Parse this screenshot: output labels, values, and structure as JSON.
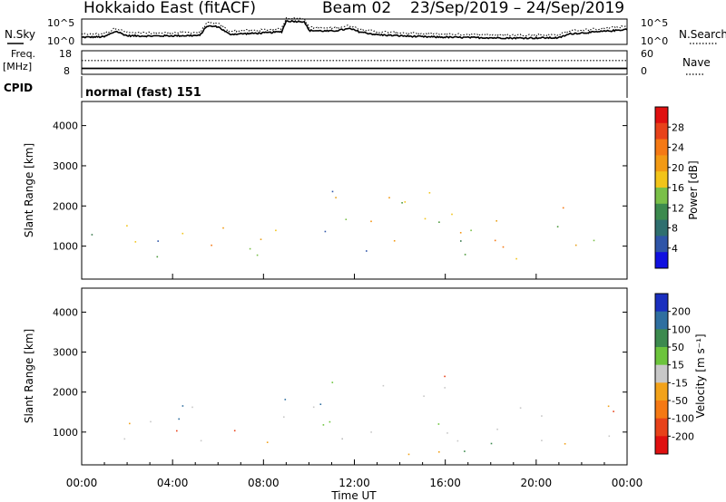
{
  "header": {
    "station": "Hokkaido East (fitACF)",
    "beam": "Beam 02",
    "date_range": "23/Sep/2019 – 24/Sep/2019"
  },
  "noise_panel": {
    "left_label": "N.Sky",
    "right_label": "N.Search",
    "top_tick": "10^5",
    "bottom_tick": "10^0",
    "sky_levels": [
      {
        "t": 0,
        "v": 0.28
      },
      {
        "t": 1,
        "v": 0.3
      },
      {
        "t": 1.5,
        "v": 0.52
      },
      {
        "t": 2,
        "v": 0.34
      },
      {
        "t": 3,
        "v": 0.33
      },
      {
        "t": 4,
        "v": 0.34
      },
      {
        "t": 5.2,
        "v": 0.35
      },
      {
        "t": 5.5,
        "v": 0.72
      },
      {
        "t": 6,
        "v": 0.7
      },
      {
        "t": 6.5,
        "v": 0.4
      },
      {
        "t": 8,
        "v": 0.45
      },
      {
        "t": 8.8,
        "v": 0.5
      },
      {
        "t": 9,
        "v": 0.92
      },
      {
        "t": 9.8,
        "v": 0.9
      },
      {
        "t": 10,
        "v": 0.55
      },
      {
        "t": 11,
        "v": 0.52
      },
      {
        "t": 11.8,
        "v": 0.62
      },
      {
        "t": 12.2,
        "v": 0.5
      },
      {
        "t": 13,
        "v": 0.38
      },
      {
        "t": 15,
        "v": 0.3
      },
      {
        "t": 17,
        "v": 0.27
      },
      {
        "t": 19,
        "v": 0.25
      },
      {
        "t": 21,
        "v": 0.26
      },
      {
        "t": 21.5,
        "v": 0.42
      },
      {
        "t": 22.5,
        "v": 0.48
      },
      {
        "t": 23.5,
        "v": 0.55
      },
      {
        "t": 24,
        "v": 0.6
      }
    ]
  },
  "freq_panel": {
    "left_label_1": "Freq.",
    "left_label_2": "[MHz]",
    "right_label": "Nave",
    "left_top_tick": "18",
    "left_bottom_tick": "8",
    "right_top_tick": "60",
    "right_bottom_tick": "0",
    "freq_mhz": 10.5,
    "nave": 35
  },
  "cpid": {
    "label": "CPID",
    "value": "normal (fast) 151"
  },
  "chart_data": [
    {
      "type": "heatmap",
      "title": "Power",
      "ylabel": "Slant Range [km]",
      "ylim": [
        180,
        4600
      ],
      "y_ticks": [
        "4000",
        "3000",
        "2000",
        "1000"
      ],
      "xlim_hours": [
        0,
        24
      ],
      "colorbar": {
        "label": "Power [dB]",
        "range": [
          0,
          32
        ],
        "ticks": [
          "28",
          "24",
          "20",
          "16",
          "12",
          "8",
          "4"
        ]
      },
      "scatter_regions_hours_km": [
        {
          "t0": 0.3,
          "t1": 4.8,
          "r0": 700,
          "r1": 1700,
          "level": "mid"
        },
        {
          "t0": 1.5,
          "t1": 3.0,
          "r0": 850,
          "r1": 1150,
          "level": "high"
        },
        {
          "t0": 5.0,
          "t1": 6.4,
          "r0": 800,
          "r1": 1800,
          "level": "high"
        },
        {
          "t0": 6.4,
          "t1": 9.2,
          "r0": 700,
          "r1": 1900,
          "level": "mid"
        },
        {
          "t0": 10.0,
          "t1": 11.2,
          "r0": 1200,
          "r1": 2100,
          "level": "mid"
        },
        {
          "t0": 11.0,
          "t1": 16.2,
          "r0": 700,
          "r1": 2500,
          "level": "mid"
        },
        {
          "t0": 12.8,
          "t1": 14.0,
          "r0": 1800,
          "r1": 2400,
          "level": "high"
        },
        {
          "t0": 13.5,
          "t1": 14.8,
          "r0": 850,
          "r1": 1200,
          "level": "high"
        },
        {
          "t0": 16.0,
          "t1": 23.8,
          "r0": 700,
          "r1": 1900,
          "level": "mid"
        },
        {
          "t0": 18.0,
          "t1": 20.2,
          "r0": 850,
          "r1": 1500,
          "level": "high"
        },
        {
          "t0": 19.8,
          "t1": 22.0,
          "r0": 1500,
          "r1": 2000,
          "level": "high"
        },
        {
          "t0": 10.0,
          "t1": 11.2,
          "r0": 200,
          "r1": 360,
          "level": "high"
        }
      ]
    },
    {
      "type": "heatmap",
      "title": "Velocity",
      "ylabel": "Slant Range [km]",
      "xlabel": "Time UT",
      "ylim": [
        180,
        4600
      ],
      "y_ticks": [
        "4000",
        "3000",
        "2000",
        "1000"
      ],
      "x_ticks": [
        "00:00",
        "04:00",
        "08:00",
        "12:00",
        "16:00",
        "20:00",
        "00:00"
      ],
      "xlim_hours": [
        0,
        24
      ],
      "colorbar": {
        "label": "Velocity [m s⁻¹]",
        "ticks": [
          "200",
          "100",
          "50",
          "15",
          "-15",
          "-50",
          "-100",
          "-200"
        ],
        "colors": [
          "#1a2fbf",
          "#2f6fa0",
          "#3c8a4e",
          "#6cc43c",
          "#c8c8c8",
          "#f2a21a",
          "#f57914",
          "#e8421a",
          "#e01010"
        ]
      },
      "scatter_regions_hours_km": [
        {
          "t0": 0.3,
          "t1": 9.2,
          "r0": 700,
          "r1": 1900,
          "level": "zero"
        },
        {
          "t0": 10.0,
          "t1": 16.2,
          "r0": 700,
          "r1": 2500,
          "level": "zero"
        },
        {
          "t0": 16.0,
          "t1": 23.8,
          "r0": 700,
          "r1": 1900,
          "level": "zero"
        },
        {
          "t0": 16.5,
          "t1": 19.5,
          "r0": 450,
          "r1": 1050,
          "level": "neg"
        },
        {
          "t0": 12.5,
          "t1": 16.0,
          "r0": 200,
          "r1": 600,
          "level": "pos"
        }
      ]
    }
  ]
}
